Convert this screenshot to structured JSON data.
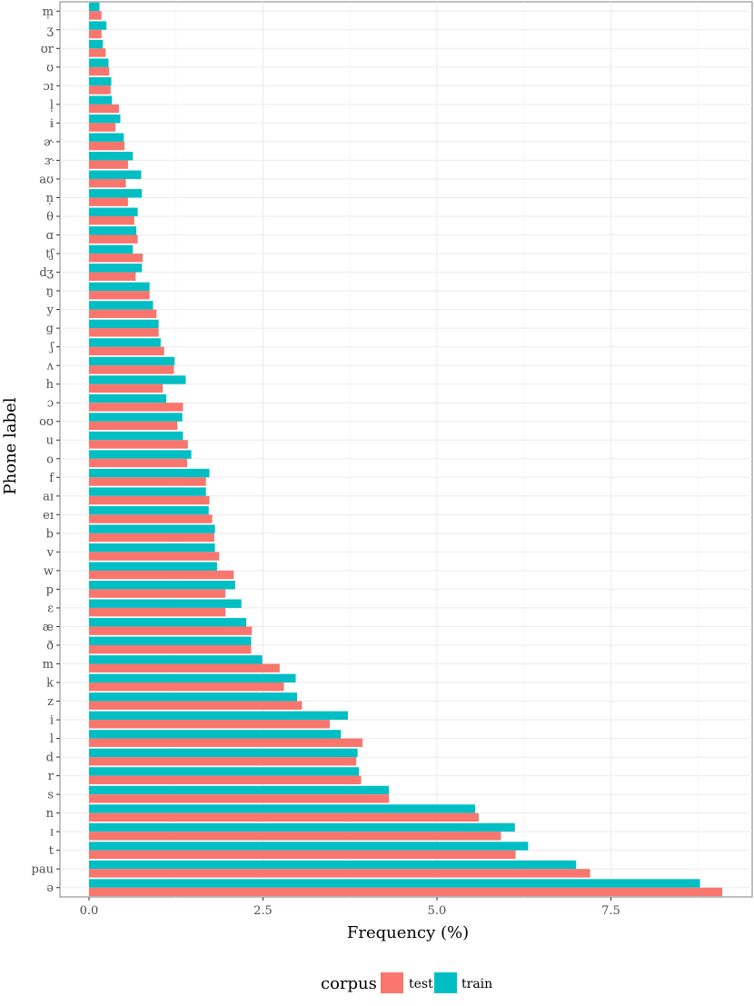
{
  "chart_data": {
    "type": "bar",
    "orientation": "horizontal",
    "xlabel": "Frequency (%)",
    "ylabel": "Phone label",
    "xlim": [
      0,
      9.2
    ],
    "xticks": [
      0,
      2.5,
      5,
      7.5
    ],
    "xtick_labels": [
      "0.0",
      "2.5",
      "5.0",
      "7.5"
    ],
    "grid": true,
    "legend": {
      "title": "corpus",
      "position": "bottom"
    },
    "categories": [
      "m̩",
      "ʒ",
      "ʊr",
      "ʊ",
      "ɔɪ",
      "l̩",
      "ɨ",
      "ɚ",
      "ɝ",
      "aʊ",
      "n̩",
      "θ",
      "ɑ",
      "tʃ",
      "dʒ",
      "ŋ",
      "y",
      "g",
      "ʃ",
      "ʌ",
      "h",
      "ɔ",
      "oʊ",
      "u",
      "o",
      "f",
      "aɪ",
      "eɪ",
      "b",
      "v",
      "w",
      "p",
      "ɛ",
      "æ",
      "ð",
      "m",
      "k",
      "z",
      "i",
      "l",
      "d",
      "r",
      "s",
      "n",
      "ɪ",
      "t",
      "pau",
      "ə"
    ],
    "series": [
      {
        "name": "train",
        "color": "#00BFC4",
        "values": [
          0.15,
          0.25,
          0.2,
          0.28,
          0.32,
          0.33,
          0.45,
          0.5,
          0.63,
          0.75,
          0.76,
          0.7,
          0.68,
          0.63,
          0.76,
          0.87,
          0.92,
          1.0,
          1.03,
          1.23,
          1.39,
          1.11,
          1.34,
          1.35,
          1.47,
          1.73,
          1.68,
          1.72,
          1.81,
          1.81,
          1.84,
          2.1,
          2.19,
          2.26,
          2.33,
          2.49,
          2.97,
          2.99,
          3.72,
          3.62,
          3.86,
          3.88,
          4.31,
          5.55,
          6.12,
          6.31,
          7.0,
          8.78
        ]
      },
      {
        "name": "test",
        "color": "#F8766D",
        "values": [
          0.18,
          0.18,
          0.24,
          0.29,
          0.31,
          0.43,
          0.38,
          0.51,
          0.56,
          0.53,
          0.56,
          0.65,
          0.7,
          0.77,
          0.67,
          0.87,
          0.97,
          1.0,
          1.08,
          1.22,
          1.06,
          1.35,
          1.27,
          1.42,
          1.41,
          1.68,
          1.73,
          1.77,
          1.8,
          1.87,
          2.08,
          1.96,
          1.96,
          2.34,
          2.33,
          2.74,
          2.8,
          3.06,
          3.46,
          3.93,
          3.84,
          3.91,
          4.31,
          5.6,
          5.92,
          6.13,
          7.2,
          9.1
        ]
      }
    ]
  }
}
